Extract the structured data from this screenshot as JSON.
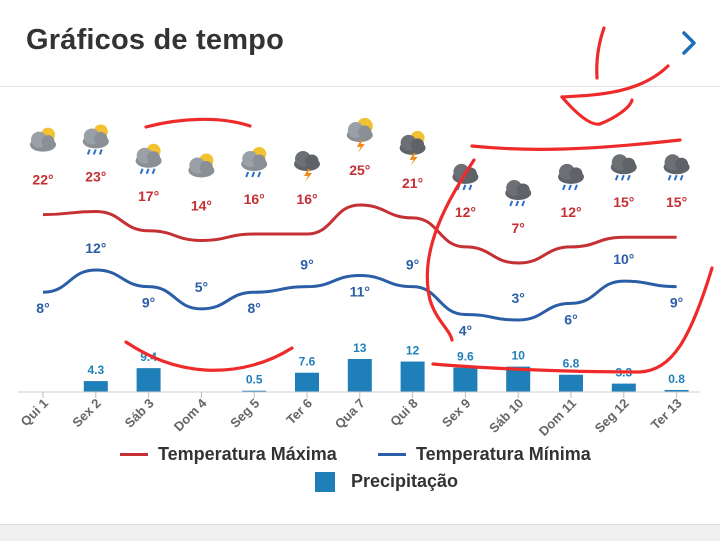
{
  "header": {
    "title": "Gráficos de tempo"
  },
  "colors": {
    "max": "#c53035",
    "min": "#2b5ea6",
    "precip": "#1f7fb8",
    "annotation": "#ee2a2a"
  },
  "legend": {
    "max_label": "Temperatura Máxima",
    "min_label": "Temperatura Mínima",
    "precip_label": "Precipitação"
  },
  "chart_data": {
    "type": "line",
    "categories": [
      "Qui 1",
      "Sex 2",
      "Sáb 3",
      "Dom 4",
      "Seg 5",
      "Ter 6",
      "Qua 7",
      "Qui 8",
      "Sex 9",
      "Sáb 10",
      "Dom 11",
      "Seg 12",
      "Ter 13"
    ],
    "series": [
      {
        "name": "Temperatura Máxima",
        "values": [
          22,
          23,
          17,
          14,
          16,
          16,
          25,
          21,
          12,
          7,
          12,
          15,
          15
        ]
      },
      {
        "name": "Temperatura Mínima",
        "values": [
          8,
          12,
          9,
          5,
          8,
          9,
          11,
          9,
          4,
          3,
          6,
          10,
          9
        ]
      },
      {
        "name": "Precipitação",
        "type": "bar",
        "values": [
          0,
          4.3,
          9.4,
          0,
          0.5,
          7.6,
          13,
          12,
          9.6,
          10,
          6.8,
          3.3,
          0.8
        ]
      }
    ],
    "max_labels": [
      "22°",
      "23°",
      "17°",
      "14°",
      "16°",
      "16°",
      "25°",
      "21°",
      "12°",
      "7°",
      "12°",
      "15°",
      "15°"
    ],
    "min_labels": [
      "8°",
      "12°",
      "9°",
      "5°",
      "8°",
      "9°",
      "11°",
      "9°",
      "4°",
      "3°",
      "6°",
      "10°",
      "9°"
    ],
    "precip_labels": [
      "",
      "4.3",
      "9.4",
      "",
      "0.5",
      "7.6",
      "13",
      "12",
      "9.6",
      "10",
      "6.8",
      "3.3",
      "0.8"
    ],
    "icons": [
      "partly-cloudy-icon",
      "cloud-sun-rain-icon",
      "cloud-sun-rain-icon",
      "partly-cloudy-icon",
      "cloud-sun-rain-icon",
      "cloud-storm-icon",
      "sun-storm-icon",
      "cloud-sun-storm-icon",
      "cloud-rain-icon",
      "cloud-rain-icon",
      "cloud-rain-icon",
      "cloud-rain-icon",
      "cloud-rain-icon"
    ],
    "legend_position": "bottom",
    "grid": false
  }
}
